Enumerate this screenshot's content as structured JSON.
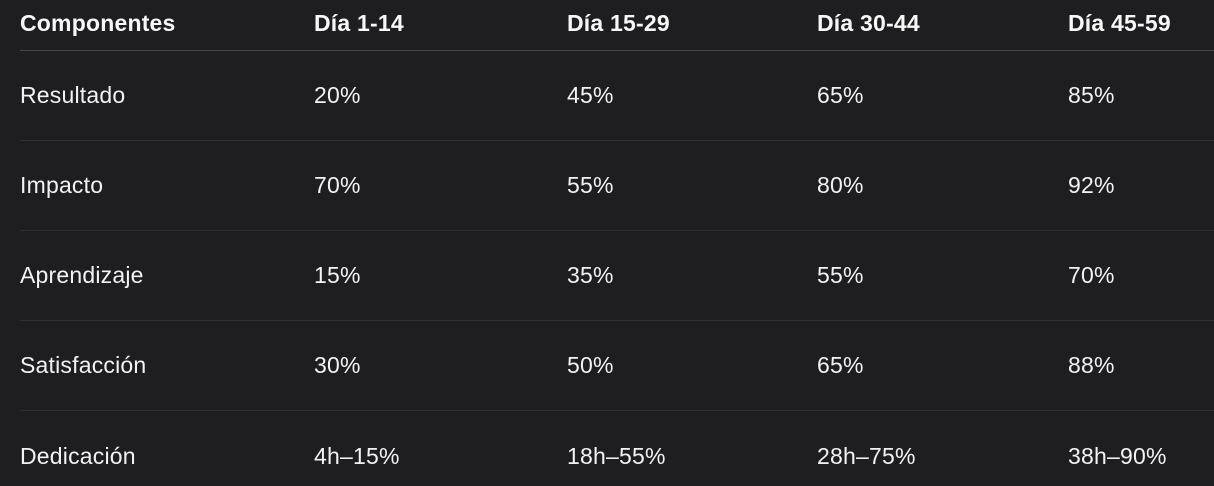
{
  "table": {
    "headers": [
      "Componentes",
      "Día 1-14",
      "Día 15-29",
      "Día 30-44",
      "Día 45-59"
    ],
    "rows": [
      [
        "Resultado",
        "20%",
        "45%",
        "65%",
        "85%"
      ],
      [
        "Impacto",
        "70%",
        "55%",
        "80%",
        "92%"
      ],
      [
        "Aprendizaje",
        "15%",
        "35%",
        "55%",
        "70%"
      ],
      [
        "Satisfacción",
        "30%",
        "50%",
        "65%",
        "88%"
      ],
      [
        "Dedicación",
        "4h–15%",
        "18h–55%",
        "28h–75%",
        "38h–90%"
      ]
    ]
  },
  "chart_data": {
    "type": "table",
    "title": "",
    "columns": [
      "Componentes",
      "Día 1-14",
      "Día 15-29",
      "Día 30-44",
      "Día 45-59"
    ],
    "row_labels": [
      "Resultado",
      "Impacto",
      "Aprendizaje",
      "Satisfacción",
      "Dedicación"
    ],
    "series": [
      {
        "name": "Resultado",
        "values": [
          "20%",
          "45%",
          "65%",
          "85%"
        ]
      },
      {
        "name": "Impacto",
        "values": [
          "70%",
          "55%",
          "80%",
          "92%"
        ]
      },
      {
        "name": "Aprendizaje",
        "values": [
          "15%",
          "35%",
          "55%",
          "70%"
        ]
      },
      {
        "name": "Satisfacción",
        "values": [
          "30%",
          "50%",
          "65%",
          "88%"
        ]
      },
      {
        "name": "Dedicación",
        "values": [
          "4h–15%",
          "18h–55%",
          "28h–75%",
          "38h–90%"
        ]
      }
    ],
    "layout": {
      "grid": "horizontal-row-dividers",
      "header_bold": true,
      "theme": "dark"
    }
  },
  "colors": {
    "background": "#1e1e20",
    "header_text": "#f7f7f8",
    "body_text": "#f2f2f3",
    "header_divider": "#47474a",
    "row_divider": "#2f2f31"
  }
}
